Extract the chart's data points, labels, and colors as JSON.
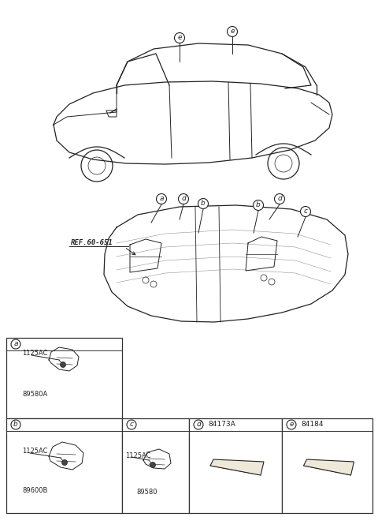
{
  "bg_color": "#ffffff",
  "fig_width": 4.8,
  "fig_height": 6.55,
  "dpi": 100,
  "ref_text": "REF.60-651",
  "line_color": "#222222",
  "grid_color": "#333333",
  "part_a_bolt": "1125AC",
  "part_a_num": "89580A",
  "part_b_bolt": "1125AC",
  "part_b_num": "89600B",
  "part_c_bolt": "1125AC",
  "part_c_num": "89580",
  "part_d_num": "84173A",
  "part_e_num": "84184"
}
